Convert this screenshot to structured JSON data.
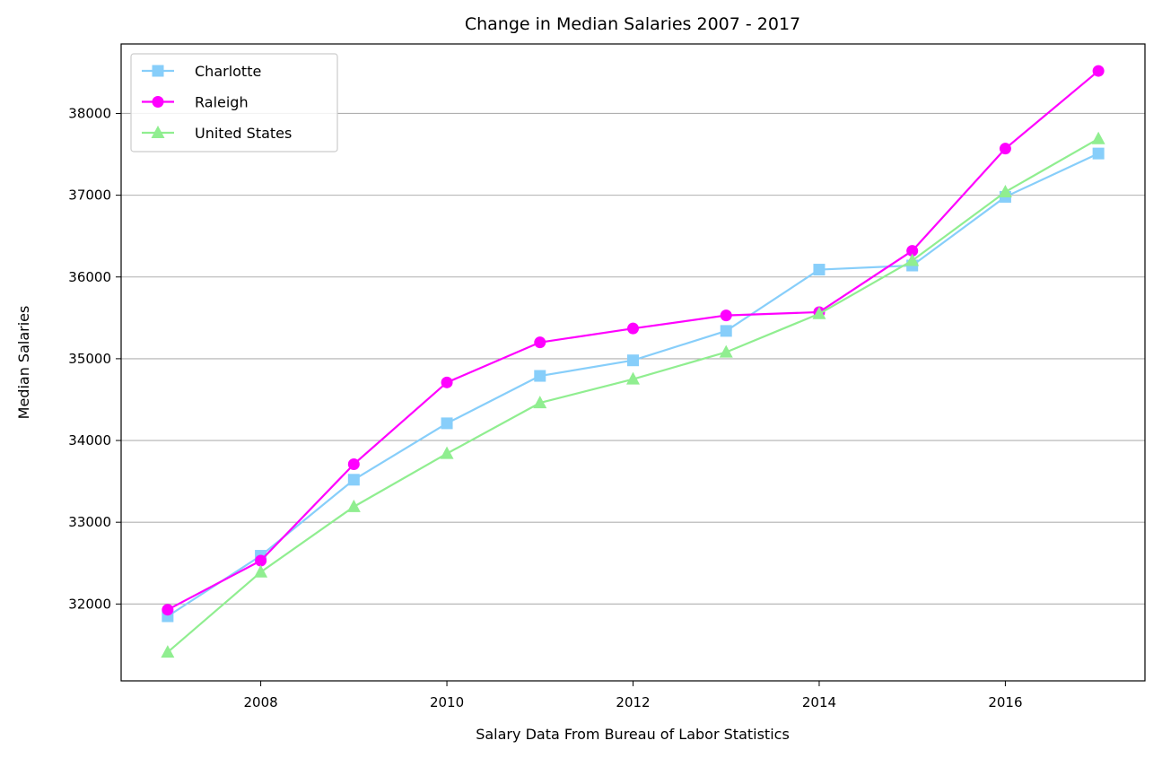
{
  "chart_data": {
    "type": "line",
    "title": "Change in Median Salaries 2007 - 2017",
    "xlabel": "Salary Data From Bureau of Labor Statistics",
    "ylabel": "Median Salaries",
    "x": [
      2007,
      2008,
      2009,
      2010,
      2011,
      2012,
      2013,
      2014,
      2015,
      2016,
      2017
    ],
    "xlim": [
      2006.5,
      2017.5
    ],
    "ylim": [
      31060,
      38850
    ],
    "xticks": [
      2008,
      2010,
      2012,
      2014,
      2016
    ],
    "yticks": [
      32000,
      33000,
      34000,
      35000,
      36000,
      37000,
      38000
    ],
    "grid": "horizontal",
    "legend_position": "upper-left",
    "series": [
      {
        "name": "Charlotte",
        "color": "#87CEFA",
        "marker": "square",
        "values": [
          31850,
          32590,
          33520,
          34210,
          34790,
          34980,
          35340,
          36090,
          36140,
          36980,
          37510
        ]
      },
      {
        "name": "Raleigh",
        "color": "#FF00FF",
        "marker": "circle",
        "values": [
          31930,
          32530,
          33710,
          34710,
          35200,
          35370,
          35530,
          35570,
          36320,
          37570,
          38520
        ]
      },
      {
        "name": "United States",
        "color": "#90EE90",
        "marker": "triangle",
        "values": [
          31410,
          32390,
          33190,
          33840,
          34460,
          34750,
          35080,
          35550,
          36200,
          37040,
          37690
        ]
      }
    ]
  }
}
